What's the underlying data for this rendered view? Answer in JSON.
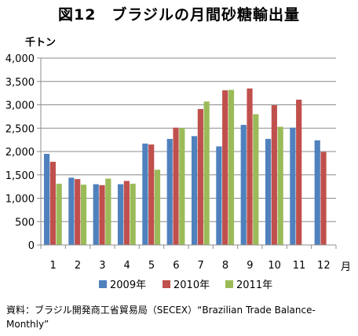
{
  "chart_data": {
    "type": "bar",
    "title": "図12　ブラジルの月間砂糖輸出量",
    "ylabel": "千トン",
    "xlabel": "月",
    "ylim": [
      0,
      4000
    ],
    "ytick_step": 500,
    "ytick_labels": [
      "0",
      "500",
      "1,000",
      "1,500",
      "2,000",
      "2,500",
      "3,000",
      "3,500",
      "4,000"
    ],
    "grid": true,
    "legend_position": "bottom",
    "categories": [
      "1",
      "2",
      "3",
      "4",
      "5",
      "6",
      "7",
      "8",
      "9",
      "10",
      "11",
      "12"
    ],
    "series": [
      {
        "name": "2009年",
        "color": "#4f81bd",
        "values": [
          1950,
          1440,
          1300,
          1300,
          2170,
          2270,
          2330,
          2110,
          2570,
          2270,
          2510,
          2240
        ]
      },
      {
        "name": "2010年",
        "color": "#c0504d",
        "values": [
          1780,
          1410,
          1280,
          1370,
          2150,
          2510,
          2910,
          3310,
          3350,
          2990,
          3110,
          1990
        ]
      },
      {
        "name": "2011年",
        "color": "#9bbb59",
        "values": [
          1310,
          1290,
          1420,
          1310,
          1610,
          2500,
          3070,
          3320,
          2800,
          2530,
          null,
          null
        ]
      }
    ]
  },
  "source": "資料：ブラジル開発商工省貿易局（SECEX）“Brazilian Trade Balance-Monthly”"
}
